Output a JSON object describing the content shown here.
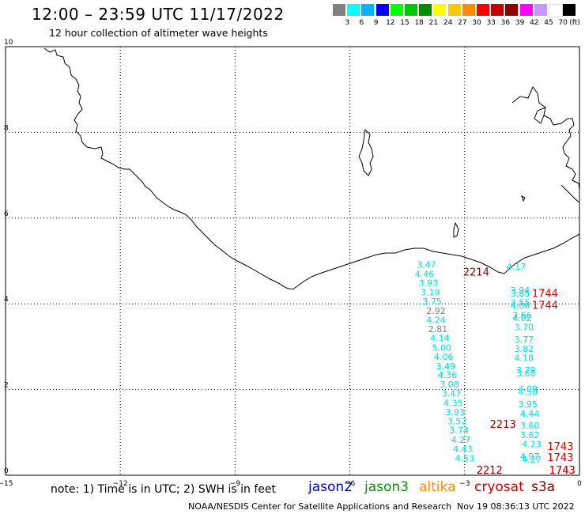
{
  "title": "12:00 – 23:59 UTC 11/17/2022",
  "subtitle": "12 hour collection of altimeter wave heights",
  "legend": {
    "labels": [
      "3",
      "6",
      "9",
      "12",
      "15",
      "18",
      "21",
      "24",
      "27",
      "30",
      "33",
      "36",
      "39",
      "42",
      "45",
      "70"
    ],
    "unit": "(ft)",
    "colors": [
      "#7f7f7f",
      "#00ffff",
      "#00b4ff",
      "#0000ff",
      "#00ff00",
      "#00c800",
      "#008c00",
      "#ffff00",
      "#ffc800",
      "#ff8c00",
      "#ff0000",
      "#c80000",
      "#8c0000",
      "#ff00ff",
      "#c896ff",
      "#ffffff",
      "#000000"
    ]
  },
  "axes": {
    "x_ticks": [
      "−15",
      "−12",
      "−9",
      "−6",
      "−3",
      "0"
    ],
    "y_ticks": [
      "0",
      "2",
      "4",
      "6",
      "8",
      "10"
    ],
    "x_range": [
      -15,
      0
    ],
    "y_range": [
      0,
      10
    ]
  },
  "note": "note: 1) Time is in UTC; 2) SWH is in feet",
  "satellites": [
    {
      "name": "jason2",
      "color": "#0000cc"
    },
    {
      "name": "jason3",
      "color": "#009900"
    },
    {
      "name": "altika",
      "color": "#ff8c00"
    },
    {
      "name": "cryosat",
      "color": "#cc0000"
    },
    {
      "name": "s3a",
      "color": "#8b0000"
    }
  ],
  "credit_left": "NOAA/NESDIS Center for Satellite Applications and Research",
  "credit_right": "Nov 19 08:36:13 UTC 2022",
  "track_times": [
    {
      "text": "2214",
      "color": "#8b0000",
      "lon": -2.7,
      "lat": 4.75
    },
    {
      "text": "2213",
      "color": "#8b0000",
      "lon": -2.0,
      "lat": 1.2
    },
    {
      "text": "2212",
      "color": "#8b0000",
      "lon": -2.35,
      "lat": 0.0
    },
    {
      "text": "1744",
      "color": "#e00000",
      "lon": -0.9,
      "lat": 4.25
    },
    {
      "text": "1744",
      "color": "#e00000",
      "lon": -0.9,
      "lat": 3.98
    },
    {
      "text": "1743",
      "color": "#e00000",
      "lon": -0.5,
      "lat": 0.68
    },
    {
      "text": "1743",
      "color": "#e00000",
      "lon": -0.5,
      "lat": 0.42
    },
    {
      "text": "1743",
      "color": "#e00000",
      "lon": -0.45,
      "lat": 0.1
    },
    {
      "text": "1743",
      "color": "#e00000",
      "lon": -0.45,
      "lat": 0.0
    }
  ],
  "wave_heights": [
    {
      "v": "3.47",
      "lon": -4.0,
      "lat": 4.92,
      "c": "#00e0e0"
    },
    {
      "v": "4.46",
      "lon": -4.05,
      "lat": 4.7,
      "c": "#00e0e0"
    },
    {
      "v": "3.93",
      "lon": -3.95,
      "lat": 4.49,
      "c": "#00e0e0"
    },
    {
      "v": "3.19",
      "lon": -3.9,
      "lat": 4.27,
      "c": "#00e0e0"
    },
    {
      "v": "3.75",
      "lon": -3.85,
      "lat": 4.06,
      "c": "#00e0e0"
    },
    {
      "v": "2.92",
      "lon": -3.75,
      "lat": 3.84,
      "c": "#7f7f7f"
    },
    {
      "v": "4.24",
      "lon": -3.75,
      "lat": 3.63,
      "c": "#00e0e0"
    },
    {
      "v": "2.81",
      "lon": -3.7,
      "lat": 3.41,
      "c": "#7f7f7f"
    },
    {
      "v": "4.14",
      "lon": -3.65,
      "lat": 3.2,
      "c": "#00e0e0"
    },
    {
      "v": "5.00",
      "lon": -3.6,
      "lat": 2.98,
      "c": "#00e0e0"
    },
    {
      "v": "4.06",
      "lon": -3.55,
      "lat": 2.77,
      "c": "#00e0e0"
    },
    {
      "v": "3.49",
      "lon": -3.5,
      "lat": 2.55,
      "c": "#00e0e0"
    },
    {
      "v": "4.36",
      "lon": -3.45,
      "lat": 2.34,
      "c": "#00e0e0"
    },
    {
      "v": "3.08",
      "lon": -3.4,
      "lat": 2.12,
      "c": "#00e0e0"
    },
    {
      "v": "3.47",
      "lon": -3.35,
      "lat": 1.91,
      "c": "#00e0e0"
    },
    {
      "v": "4.35",
      "lon": -3.3,
      "lat": 1.69,
      "c": "#00e0e0"
    },
    {
      "v": "3.93",
      "lon": -3.25,
      "lat": 1.48,
      "c": "#00e0e0"
    },
    {
      "v": "3.52",
      "lon": -3.2,
      "lat": 1.26,
      "c": "#00e0e0"
    },
    {
      "v": "3.74",
      "lon": -3.15,
      "lat": 1.05,
      "c": "#00e0e0"
    },
    {
      "v": "4.27",
      "lon": -3.1,
      "lat": 0.83,
      "c": "#00e0e0"
    },
    {
      "v": "4.43",
      "lon": -3.05,
      "lat": 0.62,
      "c": "#00e0e0"
    },
    {
      "v": "4.53",
      "lon": -3.0,
      "lat": 0.4,
      "c": "#00e0e0"
    },
    {
      "v": "4.17",
      "lon": -1.65,
      "lat": 4.87,
      "c": "#00e0e0"
    },
    {
      "v": "3.94",
      "lon": -1.55,
      "lat": 4.32,
      "c": "#00e0e0"
    },
    {
      "v": "3.85",
      "lon": -1.55,
      "lat": 4.24,
      "c": "#00e0e0"
    },
    {
      "v": "3.55",
      "lon": -1.55,
      "lat": 4.03,
      "c": "#00e0e0"
    },
    {
      "v": "4.00",
      "lon": -1.55,
      "lat": 3.96,
      "c": "#00e0e0"
    },
    {
      "v": "3.66",
      "lon": -1.5,
      "lat": 3.74,
      "c": "#00e0e0"
    },
    {
      "v": "4.02",
      "lon": -1.5,
      "lat": 3.67,
      "c": "#00e0e0"
    },
    {
      "v": "3.70",
      "lon": -1.45,
      "lat": 3.46,
      "c": "#00e0e0"
    },
    {
      "v": "3.77",
      "lon": -1.45,
      "lat": 3.17,
      "c": "#00e0e0"
    },
    {
      "v": "3.82",
      "lon": -1.45,
      "lat": 2.95,
      "c": "#00e0e0"
    },
    {
      "v": "4.18",
      "lon": -1.45,
      "lat": 2.74,
      "c": "#00e0e0"
    },
    {
      "v": "3.79",
      "lon": -1.4,
      "lat": 2.45,
      "c": "#00e0e0"
    },
    {
      "v": "3.68",
      "lon": -1.4,
      "lat": 2.38,
      "c": "#00e0e0"
    },
    {
      "v": "4.09",
      "lon": -1.35,
      "lat": 2.02,
      "c": "#00e0e0"
    },
    {
      "v": "4.50",
      "lon": -1.35,
      "lat": 1.95,
      "c": "#00e0e0"
    },
    {
      "v": "3.95",
      "lon": -1.35,
      "lat": 1.66,
      "c": "#00e0e0"
    },
    {
      "v": "4.44",
      "lon": -1.3,
      "lat": 1.44,
      "c": "#00e0e0"
    },
    {
      "v": "3.60",
      "lon": -1.3,
      "lat": 1.16,
      "c": "#00e0e0"
    },
    {
      "v": "3.62",
      "lon": -1.3,
      "lat": 0.94,
      "c": "#00e0e0"
    },
    {
      "v": "4.23",
      "lon": -1.25,
      "lat": 0.73,
      "c": "#00e0e0"
    },
    {
      "v": "4.07",
      "lon": -1.3,
      "lat": 0.44,
      "c": "#00e0e0"
    },
    {
      "v": "4.27",
      "lon": -1.25,
      "lat": 0.37,
      "c": "#00e0e0"
    }
  ]
}
